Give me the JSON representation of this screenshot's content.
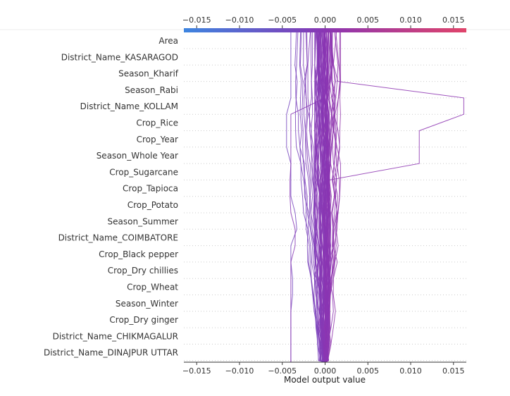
{
  "chart_data": {
    "type": "line",
    "subtype": "shap-decision-plot",
    "xlabel": "Model output value",
    "xlim": [
      -0.0165,
      0.0165
    ],
    "x_ticks": [
      -0.015,
      -0.01,
      -0.005,
      0.0,
      0.005,
      0.01,
      0.015
    ],
    "x_tick_labels": [
      "−0.015",
      "−0.010",
      "−0.005",
      "0.000",
      "0.005",
      "0.010",
      "0.015"
    ],
    "features": [
      "Area",
      "District_Name_KASARAGOD",
      "Season_Kharif",
      "Season_Rabi",
      "District_Name_KOLLAM",
      "Crop_Rice",
      "Crop_Year",
      "Season_Whole Year",
      "Crop_Sugarcane",
      "Crop_Tapioca",
      "Crop_Potato",
      "Season_Summer",
      "District_Name_COIMBATORE",
      "Crop_Black pepper",
      "Crop_Dry chillies",
      "Crop_Wheat",
      "Season_Winter",
      "Crop_Dry ginger",
      "District_Name_CHIKMAGALUR",
      "District_Name_DINAJPUR UTTAR"
    ],
    "colorbar": {
      "low_color": "#3d85e0",
      "mid_color": "#8a35b3",
      "high_color": "#e0446a"
    },
    "grid": "dotted horizontal lines per feature",
    "notable_series": [
      {
        "values": [
          -0.004,
          -0.004,
          -0.004,
          -0.004,
          -0.0045,
          -0.0045,
          -0.0045,
          -0.004,
          -0.004,
          -0.004,
          -0.0035,
          -0.0033,
          -0.004,
          -0.004,
          -0.0038,
          -0.0038,
          -0.004,
          -0.004,
          -0.004,
          -0.004,
          -0.004
        ],
        "top_value": -0.004
      },
      {
        "values": [
          0.0005,
          0.001,
          0.0015,
          0.0162,
          0.0162,
          0.011,
          0.011,
          0.011,
          0.0005,
          0.0005,
          0.0,
          0.0,
          0.0,
          0.0,
          0.0,
          0.0,
          0.0,
          0.0,
          0.0,
          0.0,
          0.0
        ],
        "top_value": 0.0162
      },
      {
        "values": [
          -0.0005,
          0.0,
          0.0,
          0.0,
          -0.004,
          -0.004,
          -0.004,
          -0.004,
          -0.0041,
          -0.0041,
          -0.004,
          -0.0035,
          -0.0035,
          -0.004,
          -0.004,
          -0.004,
          -0.004,
          -0.004,
          -0.004,
          -0.004,
          -0.004
        ],
        "top_value": -0.0041
      }
    ]
  }
}
